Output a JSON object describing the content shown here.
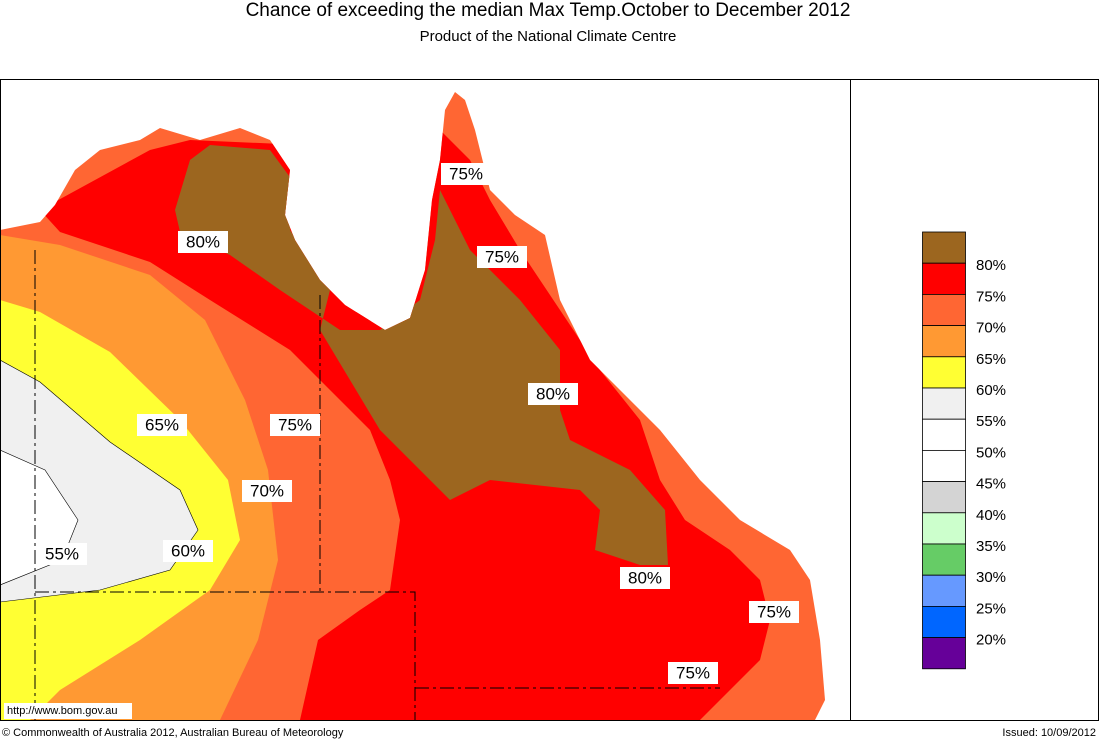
{
  "header": {
    "title": "Chance of exceeding the median Max Temp.October to December 2012",
    "subtitle": "Product of the National Climate Centre"
  },
  "map_labels": [
    "80%",
    "75%",
    "75%",
    "80%",
    "65%",
    "75%",
    "70%",
    "60%",
    "55%",
    "80%",
    "75%",
    "75%"
  ],
  "legend": {
    "colors": [
      "#9c661f",
      "#ff0000",
      "#ff6633",
      "#ff9933",
      "#ffff33",
      "#f0f0f0",
      "#ffffff",
      "#ffffff",
      "#d4d4d4",
      "#ccffcc",
      "#66cc66",
      "#6699ff",
      "#0066ff",
      "#660099"
    ],
    "labels": [
      "80%",
      "75%",
      "70%",
      "65%",
      "60%",
      "55%",
      "50%",
      "45%",
      "40%",
      "35%",
      "30%",
      "25%",
      "20%"
    ]
  },
  "footer": {
    "url": "http://www.bom.gov.au",
    "copyright": "© Commonwealth of Australia 2012, Australian Bureau of Meteorology",
    "issued": "Issued: 10/09/2012"
  }
}
